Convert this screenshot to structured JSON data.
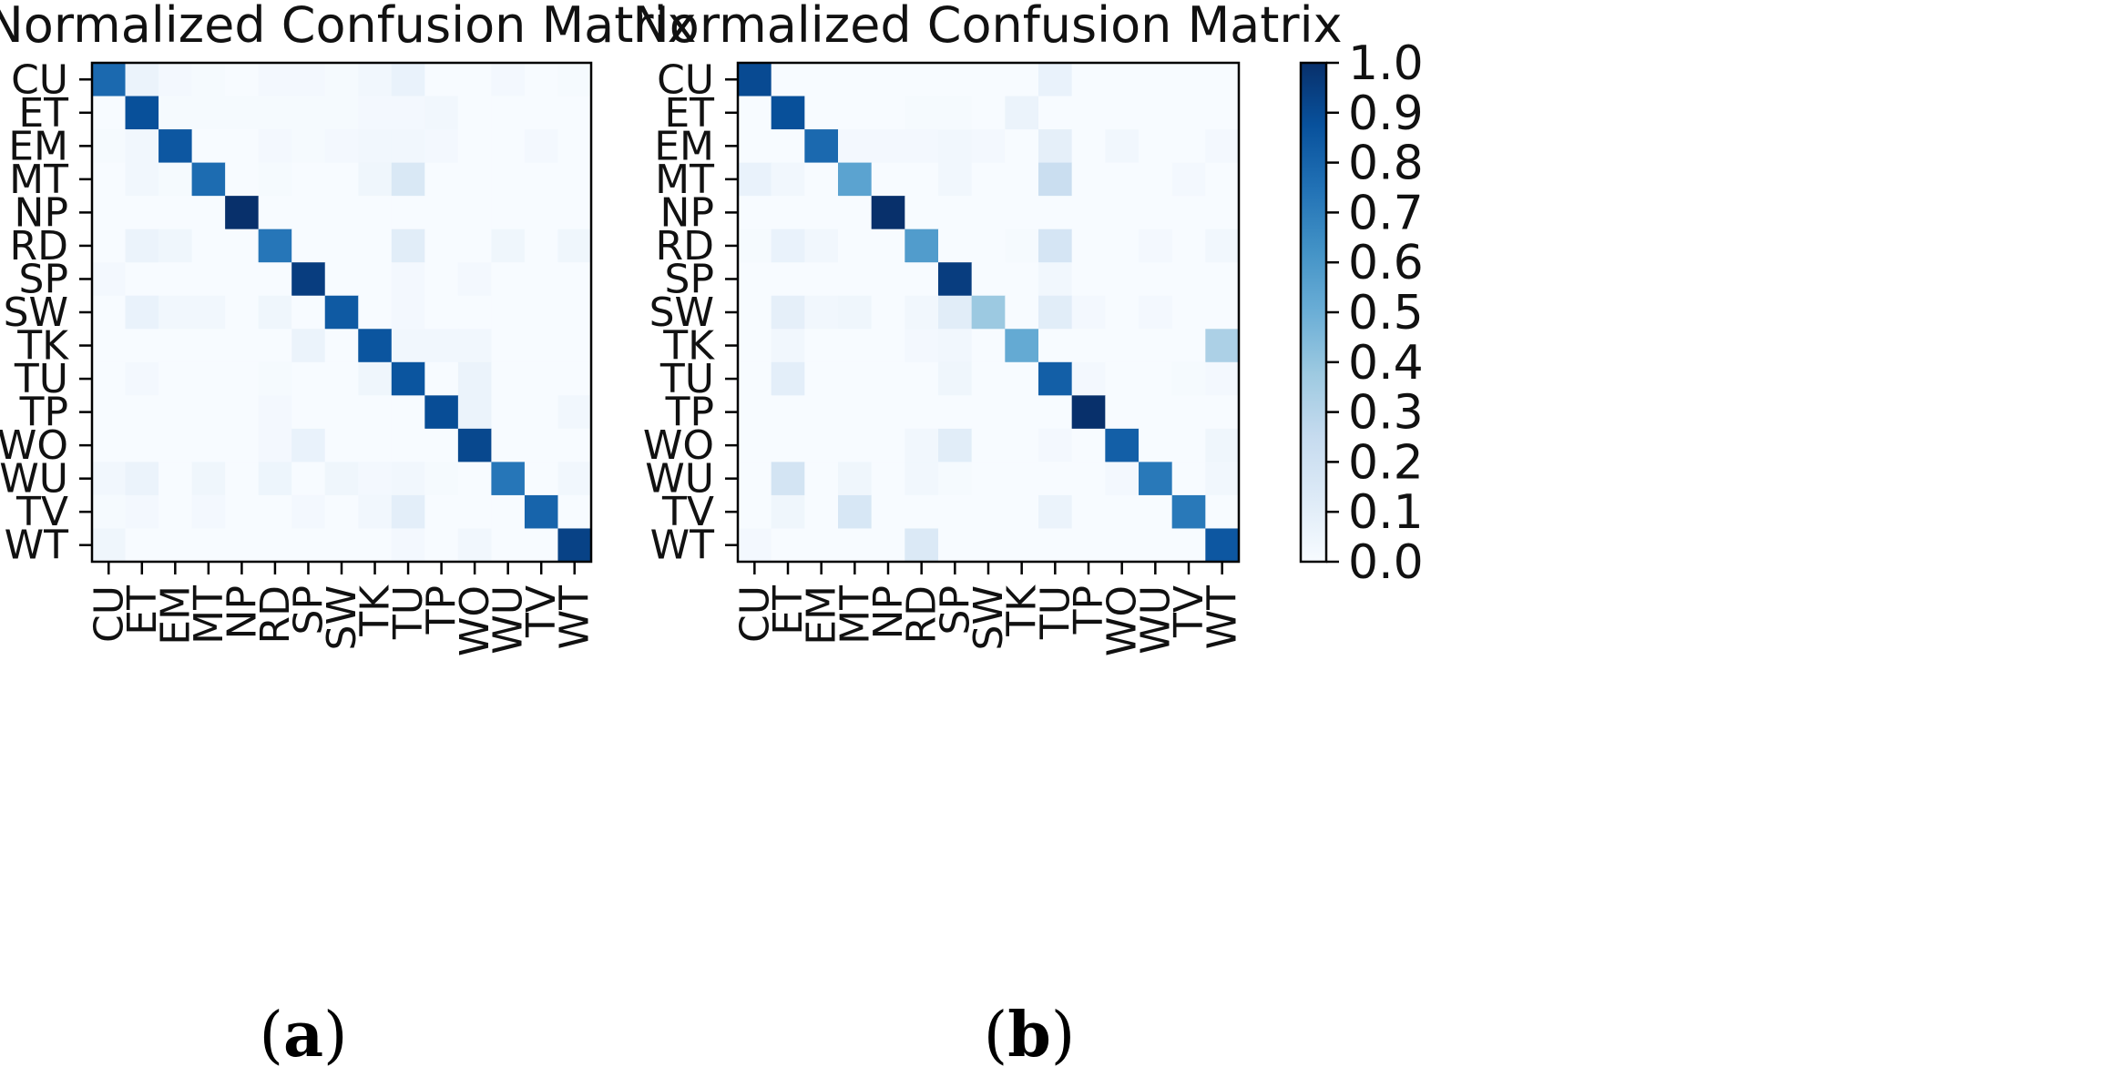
{
  "chart_data": [
    {
      "type": "heatmap",
      "title": "Normalized Confusion Matrix",
      "caption_open": "(",
      "caption_letter": "a",
      "caption_close": ")",
      "row_labels": [
        "CU",
        "ET",
        "EM",
        "MT",
        "NP",
        "RD",
        "SP",
        "SW",
        "TK",
        "TU",
        "TP",
        "WO",
        "WU",
        "TV",
        "WT"
      ],
      "col_labels": [
        "CU",
        "ET",
        "EM",
        "MT",
        "NP",
        "RD",
        "SP",
        "SW",
        "TK",
        "TU",
        "TP",
        "WO",
        "WU",
        "TV",
        "WT"
      ],
      "values": [
        [
          0.78,
          0.06,
          0.02,
          0.01,
          0.0,
          0.02,
          0.02,
          0.01,
          0.03,
          0.07,
          0.0,
          0.0,
          0.02,
          0.0,
          0.01
        ],
        [
          0.0,
          0.88,
          0.01,
          0.01,
          0.01,
          0.01,
          0.01,
          0.01,
          0.02,
          0.02,
          0.03,
          0.0,
          0.0,
          0.0,
          0.0
        ],
        [
          0.01,
          0.03,
          0.85,
          0.0,
          0.0,
          0.02,
          0.01,
          0.02,
          0.03,
          0.03,
          0.02,
          0.0,
          0.0,
          0.02,
          0.0
        ],
        [
          0.0,
          0.03,
          0.01,
          0.77,
          0.0,
          0.01,
          0.0,
          0.0,
          0.04,
          0.15,
          0.0,
          0.0,
          0.0,
          0.0,
          0.0
        ],
        [
          0.0,
          0.0,
          0.0,
          0.0,
          1.0,
          0.0,
          0.0,
          0.0,
          0.0,
          0.0,
          0.0,
          0.0,
          0.0,
          0.0,
          0.0
        ],
        [
          0.0,
          0.06,
          0.04,
          0.0,
          0.0,
          0.73,
          0.0,
          0.0,
          0.0,
          0.11,
          0.0,
          0.0,
          0.04,
          0.0,
          0.04
        ],
        [
          0.02,
          0.0,
          0.0,
          0.0,
          0.0,
          0.0,
          0.95,
          0.0,
          0.0,
          0.02,
          0.0,
          0.02,
          0.0,
          0.0,
          0.0
        ],
        [
          0.0,
          0.07,
          0.03,
          0.03,
          0.0,
          0.04,
          0.0,
          0.84,
          0.0,
          0.02,
          0.0,
          0.0,
          0.0,
          0.0,
          0.0
        ],
        [
          0.0,
          0.0,
          0.0,
          0.0,
          0.0,
          0.0,
          0.06,
          0.0,
          0.86,
          0.03,
          0.03,
          0.03,
          0.0,
          0.0,
          0.0
        ],
        [
          0.0,
          0.02,
          0.0,
          0.0,
          0.0,
          0.01,
          0.0,
          0.0,
          0.04,
          0.86,
          0.0,
          0.06,
          0.0,
          0.0,
          0.0
        ],
        [
          0.0,
          0.0,
          0.0,
          0.0,
          0.0,
          0.02,
          0.0,
          0.0,
          0.0,
          0.0,
          0.89,
          0.06,
          0.0,
          0.0,
          0.03
        ],
        [
          0.0,
          0.0,
          0.0,
          0.0,
          0.0,
          0.02,
          0.07,
          0.0,
          0.0,
          0.0,
          0.0,
          0.91,
          0.0,
          0.0,
          0.0
        ],
        [
          0.03,
          0.06,
          0.0,
          0.04,
          0.0,
          0.05,
          0.0,
          0.04,
          0.02,
          0.03,
          0.01,
          0.0,
          0.73,
          0.0,
          0.03
        ],
        [
          0.01,
          0.02,
          0.0,
          0.02,
          0.0,
          0.0,
          0.02,
          0.0,
          0.03,
          0.1,
          0.0,
          0.0,
          0.0,
          0.8,
          0.0
        ],
        [
          0.04,
          0.0,
          0.0,
          0.0,
          0.0,
          0.0,
          0.0,
          0.0,
          0.0,
          0.02,
          0.0,
          0.03,
          0.0,
          0.0,
          0.93
        ]
      ]
    },
    {
      "type": "heatmap",
      "title": "Normalized Confusion Matrix",
      "caption_open": "(",
      "caption_letter": "b",
      "caption_close": ")",
      "row_labels": [
        "CU",
        "ET",
        "EM",
        "MT",
        "NP",
        "RD",
        "SP",
        "SW",
        "TK",
        "TU",
        "TP",
        "WO",
        "WU",
        "TV",
        "WT"
      ],
      "col_labels": [
        "CU",
        "ET",
        "EM",
        "MT",
        "NP",
        "RD",
        "SP",
        "SW",
        "TK",
        "TU",
        "TP",
        "WO",
        "WU",
        "TV",
        "WT"
      ],
      "values": [
        [
          0.9,
          0.0,
          0.0,
          0.0,
          0.0,
          0.0,
          0.0,
          0.0,
          0.0,
          0.07,
          0.0,
          0.0,
          0.0,
          0.0,
          0.0
        ],
        [
          0.0,
          0.88,
          0.0,
          0.0,
          0.0,
          0.01,
          0.01,
          0.0,
          0.06,
          0.0,
          0.0,
          0.0,
          0.0,
          0.0,
          0.0
        ],
        [
          0.0,
          0.0,
          0.78,
          0.02,
          0.02,
          0.02,
          0.03,
          0.02,
          0.0,
          0.09,
          0.0,
          0.03,
          0.0,
          0.0,
          0.02
        ],
        [
          0.07,
          0.03,
          0.0,
          0.55,
          0.0,
          0.0,
          0.03,
          0.0,
          0.0,
          0.23,
          0.0,
          0.0,
          0.0,
          0.02,
          0.0
        ],
        [
          0.0,
          0.0,
          0.0,
          0.0,
          1.0,
          0.0,
          0.0,
          0.0,
          0.0,
          0.0,
          0.0,
          0.0,
          0.0,
          0.0,
          0.0
        ],
        [
          0.01,
          0.07,
          0.03,
          0.0,
          0.0,
          0.58,
          0.0,
          0.0,
          0.01,
          0.17,
          0.0,
          0.0,
          0.02,
          0.0,
          0.03
        ],
        [
          0.0,
          0.0,
          0.0,
          0.0,
          0.0,
          0.0,
          0.95,
          0.0,
          0.0,
          0.03,
          0.0,
          0.0,
          0.0,
          0.0,
          0.0
        ],
        [
          0.0,
          0.09,
          0.03,
          0.04,
          0.0,
          0.03,
          0.11,
          0.38,
          0.0,
          0.11,
          0.02,
          0.0,
          0.02,
          0.0,
          0.0
        ],
        [
          0.0,
          0.03,
          0.0,
          0.0,
          0.0,
          0.02,
          0.03,
          0.0,
          0.52,
          0.0,
          0.0,
          0.0,
          0.0,
          0.0,
          0.33
        ],
        [
          0.0,
          0.1,
          0.0,
          0.0,
          0.0,
          0.0,
          0.04,
          0.0,
          0.0,
          0.82,
          0.02,
          0.0,
          0.0,
          0.01,
          0.02
        ],
        [
          0.0,
          0.0,
          0.0,
          0.0,
          0.0,
          0.0,
          0.0,
          0.0,
          0.0,
          0.0,
          1.0,
          0.0,
          0.0,
          0.0,
          0.0
        ],
        [
          0.0,
          0.0,
          0.0,
          0.0,
          0.0,
          0.03,
          0.11,
          0.0,
          0.0,
          0.02,
          0.0,
          0.82,
          0.0,
          0.0,
          0.04
        ],
        [
          0.0,
          0.18,
          0.0,
          0.04,
          0.0,
          0.03,
          0.01,
          0.0,
          0.0,
          0.0,
          0.0,
          0.02,
          0.72,
          0.0,
          0.03
        ],
        [
          0.0,
          0.04,
          0.0,
          0.16,
          0.0,
          0.0,
          0.0,
          0.0,
          0.0,
          0.06,
          0.0,
          0.0,
          0.0,
          0.72,
          0.0
        ],
        [
          0.02,
          0.0,
          0.0,
          0.0,
          0.0,
          0.14,
          0.0,
          0.0,
          0.0,
          0.0,
          0.0,
          0.0,
          0.0,
          0.0,
          0.85
        ]
      ]
    }
  ],
  "colorbar": {
    "min": 0.0,
    "max": 1.0,
    "ticks": [
      0.0,
      0.1,
      0.2,
      0.3,
      0.4,
      0.5,
      0.6,
      0.7,
      0.8,
      0.9,
      1.0
    ],
    "tick_labels": [
      "0.0",
      "0.1",
      "0.2",
      "0.3",
      "0.4",
      "0.5",
      "0.6",
      "0.7",
      "0.8",
      "0.9",
      "1.0"
    ],
    "colormap": "Blues",
    "colormap_stops": [
      "#f7fbff",
      "#deebf7",
      "#c6dbef",
      "#9ecae1",
      "#6baed6",
      "#4292c6",
      "#2171b5",
      "#08519c",
      "#08306b"
    ]
  }
}
